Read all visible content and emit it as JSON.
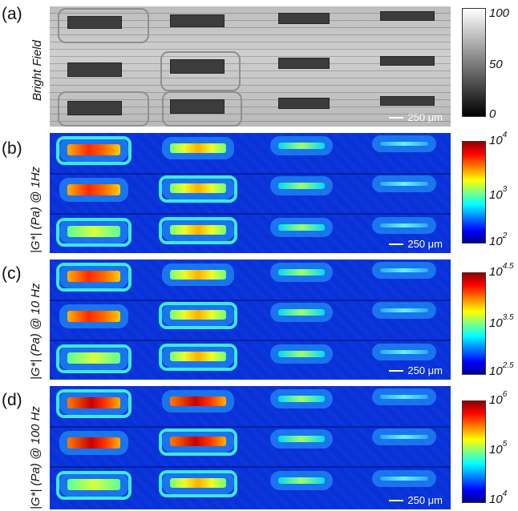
{
  "panels": [
    {
      "letter": "(a)",
      "ylabel": "Bright Field",
      "ticks": [
        {
          "base": "100",
          "exp": ""
        },
        {
          "base": "50",
          "exp": ""
        },
        {
          "base": "0",
          "exp": ""
        }
      ],
      "scale_text": "250 μm",
      "colormap": "gray"
    },
    {
      "letter": "(b)",
      "ylabel": "|G*| (Pa) @ 1Hz",
      "ticks": [
        {
          "base": "10",
          "exp": "4"
        },
        {
          "base": "10",
          "exp": "3"
        },
        {
          "base": "10",
          "exp": "2"
        }
      ],
      "scale_text": "250 μm",
      "colormap": "jet"
    },
    {
      "letter": "(c)",
      "ylabel": "|G*| (Pa) @ 10 Hz",
      "ticks": [
        {
          "base": "10",
          "exp": "4.5"
        },
        {
          "base": "10",
          "exp": "3.5"
        },
        {
          "base": "10",
          "exp": "2.5"
        }
      ],
      "scale_text": "250 μm",
      "colormap": "jet"
    },
    {
      "letter": "(d)",
      "ylabel": "|G*| (Pa) @ 100 Hz",
      "ticks": [
        {
          "base": "10",
          "exp": "6"
        },
        {
          "base": "10",
          "exp": "5"
        },
        {
          "base": "10",
          "exp": "4"
        }
      ],
      "scale_text": "250 μm",
      "colormap": "jet"
    }
  ],
  "colors": {
    "jet_low": "#00008f",
    "jet_high": "#8f0000"
  }
}
